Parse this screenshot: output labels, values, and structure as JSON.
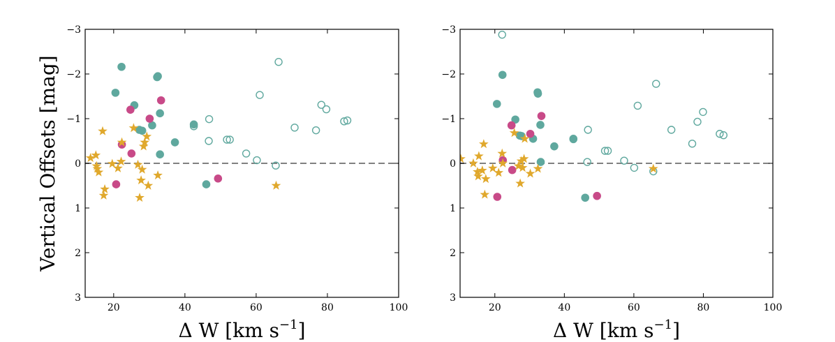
{
  "colors": {
    "teal": "#5fa89e",
    "magenta": "#c84a88",
    "gold": "#e0a82c",
    "zero_line": "#808080"
  },
  "chart_data": [
    {
      "type": "scatter",
      "title": "",
      "ylabel": "Vertical Offsets [mag]",
      "xlabel": "Δ W [km s",
      "xlabel_exponent": "−1",
      "xlabel_close": "]",
      "xlim": [
        12,
        100
      ],
      "ylim": [
        3,
        -3
      ],
      "xticks": [
        20,
        40,
        60,
        80,
        100
      ],
      "yticks": [
        -3,
        -2,
        -1,
        0,
        1,
        2,
        3
      ],
      "xtick_labels": [
        "20",
        "40",
        "60",
        "80",
        "100"
      ],
      "ytick_labels": [
        "−3",
        "−2",
        "−1",
        "0",
        "1",
        "2",
        "3"
      ],
      "zero_line": 0,
      "series": [
        {
          "name": "teal filled",
          "marker": "circle-filled",
          "color": "#5fa89e",
          "points": [
            [
              20.5,
              -1.58
            ],
            [
              22.2,
              -2.16
            ],
            [
              25.8,
              -1.3
            ],
            [
              27.2,
              -0.75
            ],
            [
              28,
              -0.73
            ],
            [
              30.8,
              -0.85
            ],
            [
              32.2,
              -1.93
            ],
            [
              32.4,
              -1.95
            ],
            [
              33,
              -1.12
            ],
            [
              33,
              -0.2
            ],
            [
              37.2,
              -0.47
            ],
            [
              42.5,
              -0.87
            ],
            [
              46,
              0.47
            ]
          ]
        },
        {
          "name": "magenta filled",
          "marker": "circle-filled",
          "color": "#c84a88",
          "points": [
            [
              20.7,
              0.47
            ],
            [
              22.3,
              -0.42
            ],
            [
              24.7,
              -1.2
            ],
            [
              25,
              -0.22
            ],
            [
              30.1,
              -1.0
            ],
            [
              33.3,
              -1.41
            ],
            [
              49.3,
              0.34
            ]
          ]
        },
        {
          "name": "teal open",
          "marker": "circle-open",
          "color": "#5fa89e",
          "points": [
            [
              42.5,
              -0.83
            ],
            [
              46.7,
              -0.5
            ],
            [
              46.8,
              -0.99
            ],
            [
              51.8,
              -0.53
            ],
            [
              52.6,
              -0.53
            ],
            [
              57.2,
              -0.22
            ],
            [
              60.2,
              -0.07
            ],
            [
              61,
              -1.53
            ],
            [
              65.5,
              0.05
            ],
            [
              66.3,
              -2.27
            ],
            [
              70.8,
              -0.8
            ],
            [
              76.8,
              -0.74
            ],
            [
              78.3,
              -1.31
            ],
            [
              79.7,
              -1.21
            ],
            [
              84.7,
              -0.94
            ],
            [
              85.6,
              -0.96
            ]
          ]
        },
        {
          "name": "gold stars",
          "marker": "star",
          "color": "#e0a82c",
          "points": [
            [
              13.5,
              -0.12
            ],
            [
              15,
              -0.18
            ],
            [
              15.2,
              0.06
            ],
            [
              15.4,
              0.12
            ],
            [
              15.8,
              0.2
            ],
            [
              16.9,
              -0.72
            ],
            [
              17.2,
              0.72
            ],
            [
              17.5,
              0.58
            ],
            [
              19.6,
              0.01
            ],
            [
              21.2,
              0.11
            ],
            [
              22.1,
              -0.04
            ],
            [
              22.3,
              -0.47
            ],
            [
              25.6,
              -0.79
            ],
            [
              26.8,
              0.03
            ],
            [
              27.3,
              0.77
            ],
            [
              27.7,
              0.38
            ],
            [
              28,
              0.14
            ],
            [
              28.4,
              -0.38
            ],
            [
              28.7,
              -0.47
            ],
            [
              29.3,
              -0.6
            ],
            [
              29.7,
              0.5
            ],
            [
              32.4,
              0.27
            ],
            [
              65.6,
              0.5
            ]
          ]
        }
      ]
    },
    {
      "type": "scatter",
      "title": "",
      "ylabel": "",
      "xlabel": "Δ W [km s",
      "xlabel_exponent": "−1",
      "xlabel_close": "]",
      "xlim": [
        10,
        100
      ],
      "ylim": [
        3,
        -3
      ],
      "xticks": [
        20,
        40,
        60,
        80,
        100
      ],
      "yticks": [
        -3,
        -2,
        -1,
        0,
        1,
        2,
        3
      ],
      "xtick_labels": [
        "20",
        "40",
        "60",
        "80",
        "100"
      ],
      "ytick_labels": [
        "−3",
        "−2",
        "−1",
        "0",
        "1",
        "2",
        "3"
      ],
      "zero_line": 0,
      "series": [
        {
          "name": "teal filled",
          "marker": "circle-filled",
          "color": "#5fa89e",
          "points": [
            [
              20.6,
              -1.33
            ],
            [
              22.2,
              -1.98
            ],
            [
              25.9,
              -0.98
            ],
            [
              27.2,
              -0.62
            ],
            [
              27.7,
              -0.61
            ],
            [
              31,
              -0.55
            ],
            [
              32.3,
              -1.59
            ],
            [
              32.4,
              -1.56
            ],
            [
              33.1,
              -0.86
            ],
            [
              33.2,
              -0.03
            ],
            [
              37.1,
              -0.38
            ],
            [
              42.6,
              -0.55
            ],
            [
              46,
              0.77
            ]
          ]
        },
        {
          "name": "magenta filled",
          "marker": "circle-filled",
          "color": "#c84a88",
          "points": [
            [
              20.7,
              0.75
            ],
            [
              22.3,
              -0.07
            ],
            [
              24.8,
              -0.85
            ],
            [
              25,
              0.15
            ],
            [
              30.2,
              -0.66
            ],
            [
              33.4,
              -1.06
            ],
            [
              49.4,
              0.73
            ]
          ]
        },
        {
          "name": "teal open",
          "marker": "circle-open",
          "color": "#5fa89e",
          "points": [
            [
              22.1,
              -2.88
            ],
            [
              42.6,
              -0.54
            ],
            [
              46.6,
              -0.03
            ],
            [
              46.8,
              -0.75
            ],
            [
              51.7,
              -0.28
            ],
            [
              52.5,
              -0.28
            ],
            [
              57.2,
              -0.06
            ],
            [
              60.1,
              0.1
            ],
            [
              61.1,
              -1.29
            ],
            [
              65.6,
              0.18
            ],
            [
              66.4,
              -1.78
            ],
            [
              70.8,
              -0.75
            ],
            [
              76.8,
              -0.44
            ],
            [
              78.3,
              -0.93
            ],
            [
              79.9,
              -1.15
            ],
            [
              84.7,
              -0.66
            ],
            [
              85.8,
              -0.63
            ]
          ]
        },
        {
          "name": "gold stars",
          "marker": "star",
          "color": "#e0a82c",
          "points": [
            [
              10.2,
              -0.1
            ],
            [
              13.8,
              0.0
            ],
            [
              15,
              0.19
            ],
            [
              15.2,
              0.29
            ],
            [
              15.4,
              -0.16
            ],
            [
              16.4,
              0.16
            ],
            [
              16.8,
              -0.43
            ],
            [
              17.1,
              0.7
            ],
            [
              17.4,
              0.35
            ],
            [
              19.4,
              0.11
            ],
            [
              21.1,
              0.21
            ],
            [
              22.1,
              -0.22
            ],
            [
              22.3,
              0.0
            ],
            [
              25.6,
              -0.68
            ],
            [
              26.8,
              0.06
            ],
            [
              27.3,
              0.45
            ],
            [
              27.6,
              -0.05
            ],
            [
              28,
              0.1
            ],
            [
              28.4,
              -0.1
            ],
            [
              28.6,
              -0.55
            ],
            [
              30.2,
              0.23
            ],
            [
              32.4,
              0.12
            ],
            [
              65.6,
              0.12
            ]
          ]
        }
      ]
    }
  ]
}
